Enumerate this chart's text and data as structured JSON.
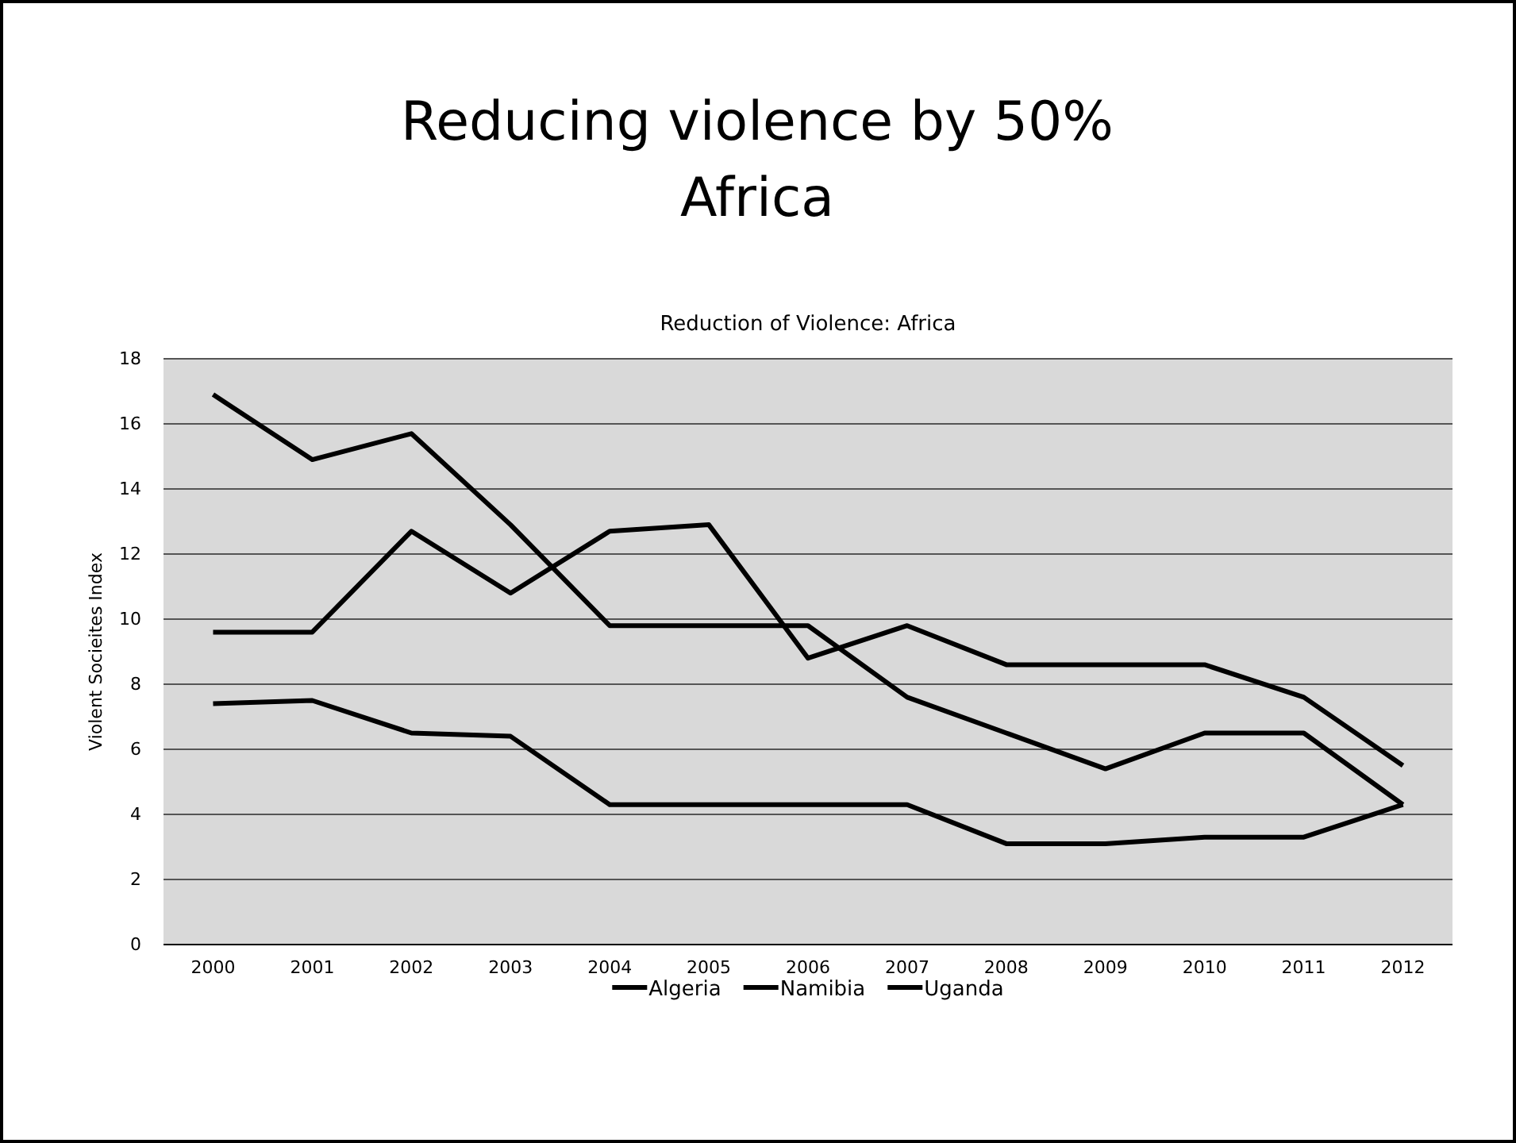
{
  "chart_data": {
    "type": "line",
    "title": "Reducing violence by 50%\nAfrica",
    "subtitle": "Reduction of Violence: Africa",
    "ylabel": "Violent Socieites Index",
    "categories": [
      "2000",
      "2001",
      "2002",
      "2003",
      "2004",
      "2005",
      "2006",
      "2007",
      "2008",
      "2009",
      "2010",
      "2011",
      "2012"
    ],
    "series": [
      {
        "name": "Algeria",
        "color": "#000000",
        "values": [
          16.9,
          14.9,
          15.7,
          12.9,
          9.8,
          9.8,
          9.8,
          7.6,
          6.5,
          5.4,
          6.5,
          6.5,
          4.3
        ]
      },
      {
        "name": "Namibia",
        "color": "#000000",
        "values": [
          9.6,
          9.6,
          12.7,
          10.8,
          12.7,
          12.9,
          8.8,
          9.8,
          8.6,
          8.6,
          8.6,
          7.6,
          5.5
        ]
      },
      {
        "name": "Uganda",
        "color": "#000000",
        "values": [
          7.4,
          7.5,
          6.5,
          6.4,
          4.3,
          4.3,
          4.3,
          4.3,
          3.1,
          3.1,
          3.3,
          3.3,
          4.3
        ]
      }
    ],
    "ylim": [
      0,
      18
    ],
    "yticks": [
      0,
      2,
      4,
      6,
      8,
      10,
      12,
      14,
      16,
      18
    ],
    "grid": "y",
    "legend": "bottom",
    "marker": "none",
    "line_style": "solid"
  }
}
